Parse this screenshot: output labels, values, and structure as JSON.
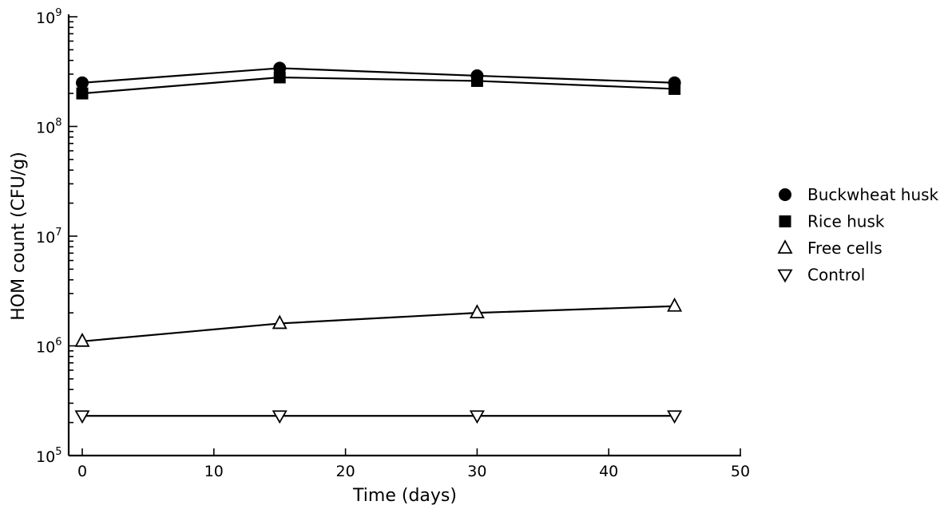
{
  "chart_data": {
    "type": "line",
    "xlabel": "Time (days)",
    "ylabel": "HOM count (CFU/g)",
    "xlim": [
      0,
      50
    ],
    "ylim": [
      100000,
      1000000000
    ],
    "yscale": "log",
    "xticks": [
      0,
      10,
      20,
      30,
      40,
      50
    ],
    "xtick_labels": [
      "0",
      "10",
      "20",
      "30",
      "40",
      "50"
    ],
    "yticks": [
      {
        "value": 100000,
        "base": "10",
        "exp": "5"
      },
      {
        "value": 1000000,
        "base": "10",
        "exp": "6"
      },
      {
        "value": 10000000,
        "base": "10",
        "exp": "7"
      },
      {
        "value": 100000000,
        "base": "10",
        "exp": "8"
      },
      {
        "value": 1000000000,
        "base": "10",
        "exp": "9"
      }
    ],
    "legend_position": "right",
    "x": [
      0,
      15,
      30,
      45
    ],
    "series": [
      {
        "name": "Buckwheat husk",
        "marker": "filled-circle",
        "values": [
          250000000,
          340000000,
          290000000,
          250000000
        ]
      },
      {
        "name": "Rice husk",
        "marker": "filled-square",
        "values": [
          200000000,
          280000000,
          260000000,
          220000000
        ]
      },
      {
        "name": "Free cells",
        "marker": "open-triangle-up",
        "values": [
          1100000,
          1600000,
          2000000,
          2300000
        ]
      },
      {
        "name": "Control",
        "marker": "open-triangle-down",
        "values": [
          230000,
          230000,
          230000,
          230000
        ]
      }
    ]
  }
}
